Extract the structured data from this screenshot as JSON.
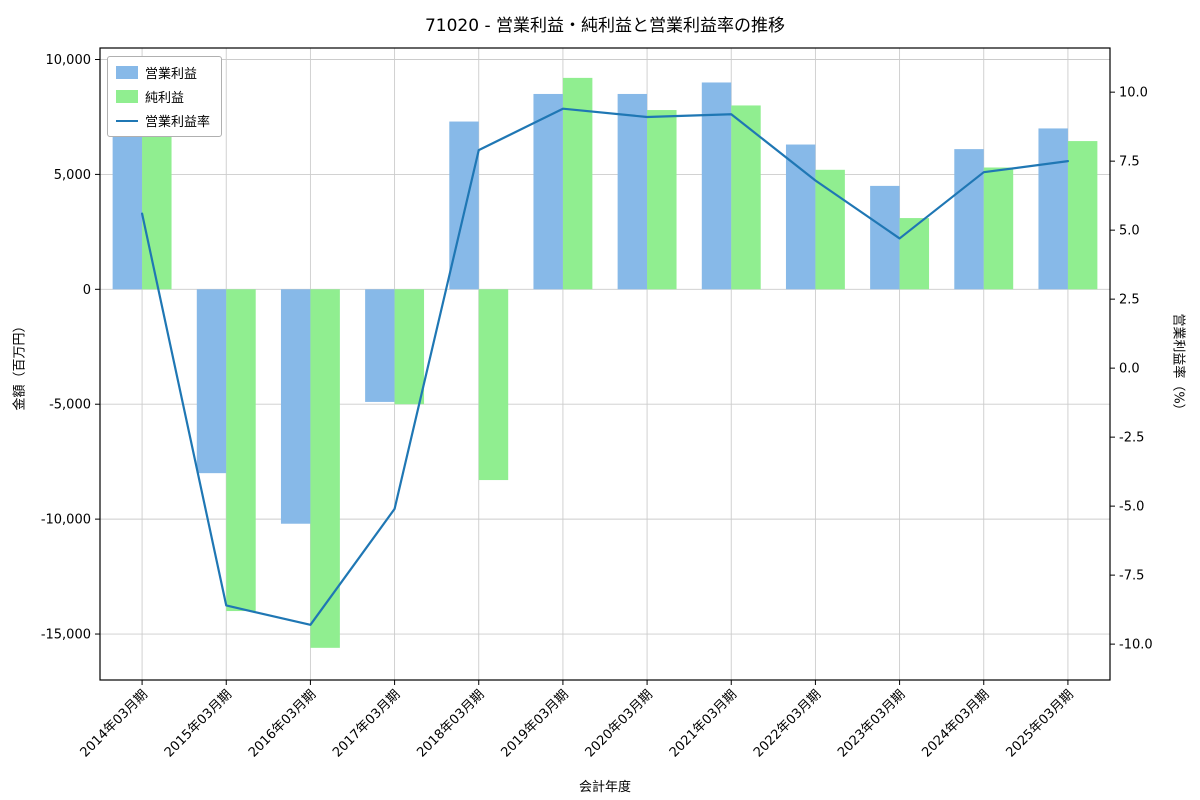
{
  "chart_data": {
    "type": "bar+line",
    "title": "71020 - 営業利益・純利益と営業利益率の推移",
    "xlabel": "会計年度",
    "ylabel_left": "金額（百万円）",
    "ylabel_right": "営業利益率（%）",
    "categories": [
      "2014年03月期",
      "2015年03月期",
      "2016年03月期",
      "2017年03月期",
      "2018年03月期",
      "2019年03月期",
      "2020年03月期",
      "2021年03月期",
      "2022年03月期",
      "2023年03月期",
      "2024年03月期",
      "2025年03月期"
    ],
    "series": [
      {
        "name": "営業利益",
        "type": "bar",
        "axis": "left",
        "color": "#87b9e8",
        "values": [
          6700,
          -8000,
          -10200,
          -4900,
          7300,
          8500,
          8500,
          9000,
          6300,
          4500,
          6100,
          7000
        ]
      },
      {
        "name": "純利益",
        "type": "bar",
        "axis": "left",
        "color": "#90ee90",
        "values": [
          6950,
          -14000,
          -15600,
          -5000,
          -8300,
          9200,
          7800,
          8000,
          5200,
          3100,
          5300,
          6450
        ]
      },
      {
        "name": "営業利益率",
        "type": "line",
        "axis": "right",
        "color": "#1f77b4",
        "values": [
          5.6,
          -8.6,
          -9.3,
          -5.1,
          7.9,
          9.4,
          9.1,
          9.2,
          6.8,
          4.7,
          7.1,
          7.5
        ]
      }
    ],
    "left_axis": {
      "lim": [
        -17000,
        10500
      ],
      "ticks": [
        10000,
        5000,
        0,
        -5000,
        -10000,
        -15000
      ],
      "tick_labels": [
        "10,000",
        "5,000",
        "0",
        "-5,000",
        "-10,000",
        "-15,000"
      ]
    },
    "right_axis": {
      "lim": [
        -11.3,
        11.6
      ],
      "ticks": [
        10,
        7.5,
        5,
        2.5,
        0,
        -2.5,
        -5,
        -7.5,
        -10
      ],
      "tick_labels": [
        "10.0",
        "7.5",
        "5.0",
        "2.5",
        "0.0",
        "-2.5",
        "-5.0",
        "-7.5",
        "-10.0"
      ]
    },
    "grid": true,
    "legend_position": "upper-left",
    "grid_color": "#cccccc",
    "spine_color": "#000000"
  }
}
